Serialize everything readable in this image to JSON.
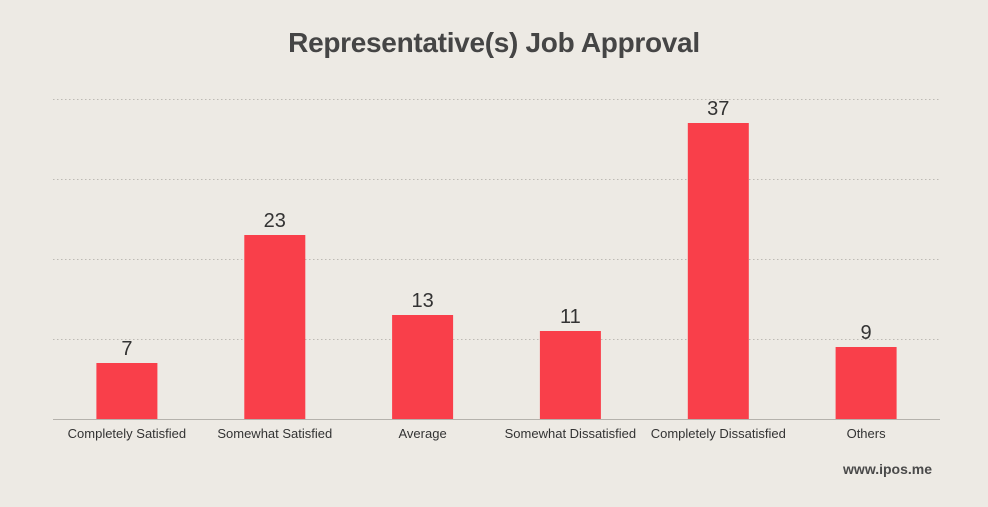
{
  "chart_data": {
    "type": "bar",
    "title": "Representative(s) Job Approval",
    "categories": [
      "Completely Satisfied",
      "Somewhat Satisfied",
      "Average",
      "Somewhat Dissatisfied",
      "Completely Dissatisfied",
      "Others"
    ],
    "values": [
      7,
      23,
      13,
      11,
      37,
      9
    ],
    "xlabel": "",
    "ylabel": "",
    "ylim": [
      0,
      40
    ],
    "grid": true,
    "data_labels": true,
    "colors": {
      "bar": "#f93f4a",
      "grid": "#bdbab4",
      "axis": "#b5b2ac",
      "label": "#333333",
      "tick": "#333333"
    }
  },
  "watermark": "www.ipos.me"
}
